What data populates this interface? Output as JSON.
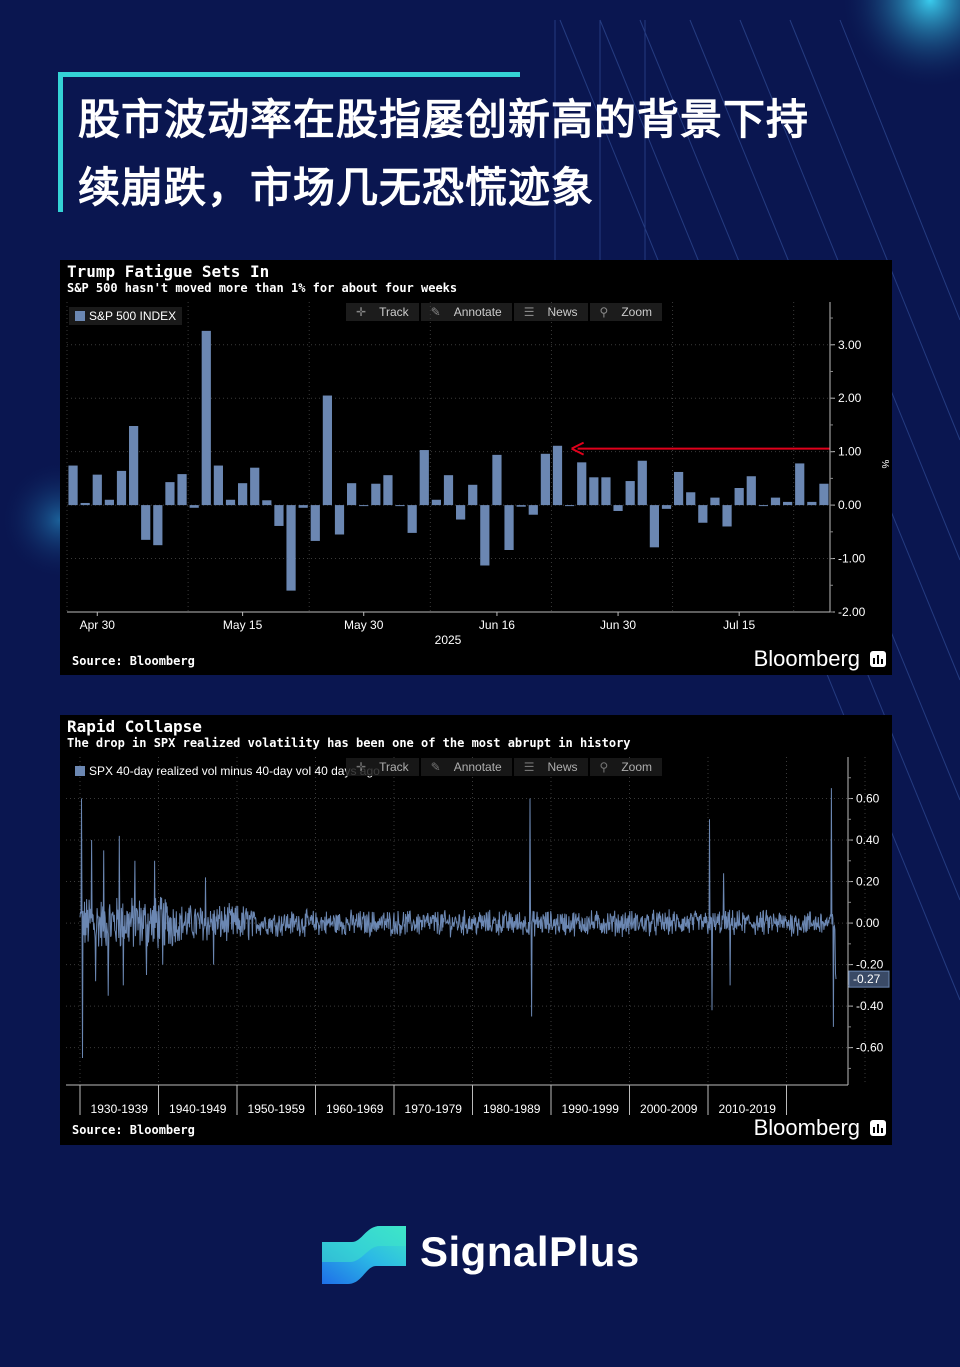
{
  "headline": {
    "line1": "股市波动率在股指屡创新高的背景下持",
    "line2": "续崩跌，市场几无恐慌迹象"
  },
  "colors": {
    "background": "#0a1650",
    "accent": "#34d3d6",
    "bar": "#6b87b2",
    "arrow": "#e0001b"
  },
  "toolbar": {
    "track": "Track",
    "annotate": "Annotate",
    "news": "News",
    "zoom": "Zoom"
  },
  "chart1": {
    "title": "Trump Fatigue Sets In",
    "subtitle": "S&P 500 hasn't moved more than 1% for about four weeks",
    "legend": "S&P 500 INDEX",
    "source": "Source: Bloomberg",
    "brand": "Bloomberg",
    "unit": "%",
    "year_label": "2025"
  },
  "chart2": {
    "title": "Rapid Collapse",
    "subtitle": "The drop in SPX realized volatility has been one of the most abrupt in history",
    "legend": "SPX 40-day realized vol minus 40-day vol 40 days ago",
    "source": "Source: Bloomberg",
    "brand": "Bloomberg",
    "last_value": "-0.27"
  },
  "chart_data": [
    {
      "type": "bar",
      "title": "Trump Fatigue Sets In",
      "series": [
        {
          "name": "S&P 500 INDEX",
          "values": [
            0.74,
            0.04,
            0.57,
            0.1,
            0.64,
            1.48,
            -0.65,
            -0.75,
            0.43,
            0.58,
            -0.05,
            3.26,
            0.74,
            0.1,
            0.41,
            0.7,
            0.09,
            -0.39,
            -1.6,
            -0.05,
            -0.67,
            2.05,
            -0.55,
            0.41,
            0.0,
            0.4,
            0.56,
            0.0,
            -0.52,
            1.03,
            0.1,
            0.56,
            -0.27,
            0.38,
            -1.13,
            0.94,
            -0.84,
            -0.03,
            -0.18,
            0.96,
            1.11,
            0.0,
            0.8,
            0.52,
            0.52,
            -0.11,
            0.45,
            0.83,
            -0.79,
            -0.07,
            0.62,
            0.24,
            -0.33,
            0.14,
            -0.4,
            0.32,
            0.54,
            0.0,
            0.14,
            0.06,
            0.78,
            0.06,
            0.4
          ]
        }
      ],
      "x_ticks": [
        "Apr 30",
        "May 15",
        "May 30",
        "Jun 16",
        "Jun 30",
        "Jul 15"
      ],
      "x_tick_index": [
        2,
        14,
        24,
        35,
        45,
        55
      ],
      "xlabel": "2025",
      "y_ticks": [
        3.0,
        2.0,
        1.0,
        0.0,
        -1.0,
        -2.0
      ],
      "y_tick_labels": [
        "3.00",
        "2.00",
        "1.00",
        "0.00",
        "-1.00",
        "-2.00"
      ],
      "ylim": [
        -2.0,
        3.8
      ],
      "ylabel": "%",
      "annotation": {
        "type": "arrow",
        "value": 1.0,
        "from_index": 62,
        "to_index": 41
      },
      "legend_position": "top-left",
      "grid": true
    },
    {
      "type": "line",
      "title": "Rapid Collapse",
      "series": [
        {
          "name": "SPX 40-day realized vol minus 40-day vol 40 days ago",
          "spikes": [
            {
              "decade_pos": 0.02,
              "value": 0.6
            },
            {
              "decade_pos": 0.03,
              "value": -0.65
            },
            {
              "decade_pos": 0.15,
              "value": 0.4
            },
            {
              "decade_pos": 0.2,
              "value": -0.28
            },
            {
              "decade_pos": 0.3,
              "value": 0.35
            },
            {
              "decade_pos": 0.36,
              "value": -0.35
            },
            {
              "decade_pos": 0.5,
              "value": 0.42
            },
            {
              "decade_pos": 0.55,
              "value": -0.3
            },
            {
              "decade_pos": 0.7,
              "value": 0.3
            },
            {
              "decade_pos": 0.85,
              "value": -0.25
            },
            {
              "decade_pos": 0.95,
              "value": 0.3
            },
            {
              "decade_pos": 1.05,
              "value": -0.2
            },
            {
              "decade_pos": 1.6,
              "value": 0.22
            },
            {
              "decade_pos": 1.7,
              "value": -0.2
            },
            {
              "decade_pos": 5.73,
              "value": 0.6
            },
            {
              "decade_pos": 5.75,
              "value": -0.45
            },
            {
              "decade_pos": 8.02,
              "value": 0.5
            },
            {
              "decade_pos": 8.05,
              "value": -0.42
            },
            {
              "decade_pos": 8.2,
              "value": 0.24
            },
            {
              "decade_pos": 8.28,
              "value": -0.3
            },
            {
              "decade_pos": 9.57,
              "value": 0.65
            },
            {
              "decade_pos": 9.6,
              "value": -0.5
            },
            {
              "decade_pos": 9.75,
              "value": 0.25
            },
            {
              "decade_pos": 9.78,
              "value": -0.26
            }
          ],
          "last": -0.27
        }
      ],
      "x_ticks": [
        "1930-1939",
        "1940-1949",
        "1950-1959",
        "1960-1969",
        "1970-1979",
        "1980-1989",
        "1990-1999",
        "2000-2009",
        "2010-2019"
      ],
      "y_ticks": [
        0.6,
        0.4,
        0.2,
        0.0,
        -0.2,
        -0.4,
        -0.6
      ],
      "y_tick_labels": [
        "0.60",
        "0.40",
        "0.20",
        "0.00",
        "-0.20",
        "-0.40",
        "-0.60"
      ],
      "ylim": [
        -0.78,
        0.8
      ],
      "legend_position": "top-left",
      "grid": true
    }
  ],
  "footer": {
    "brand": "SignalPlus"
  }
}
